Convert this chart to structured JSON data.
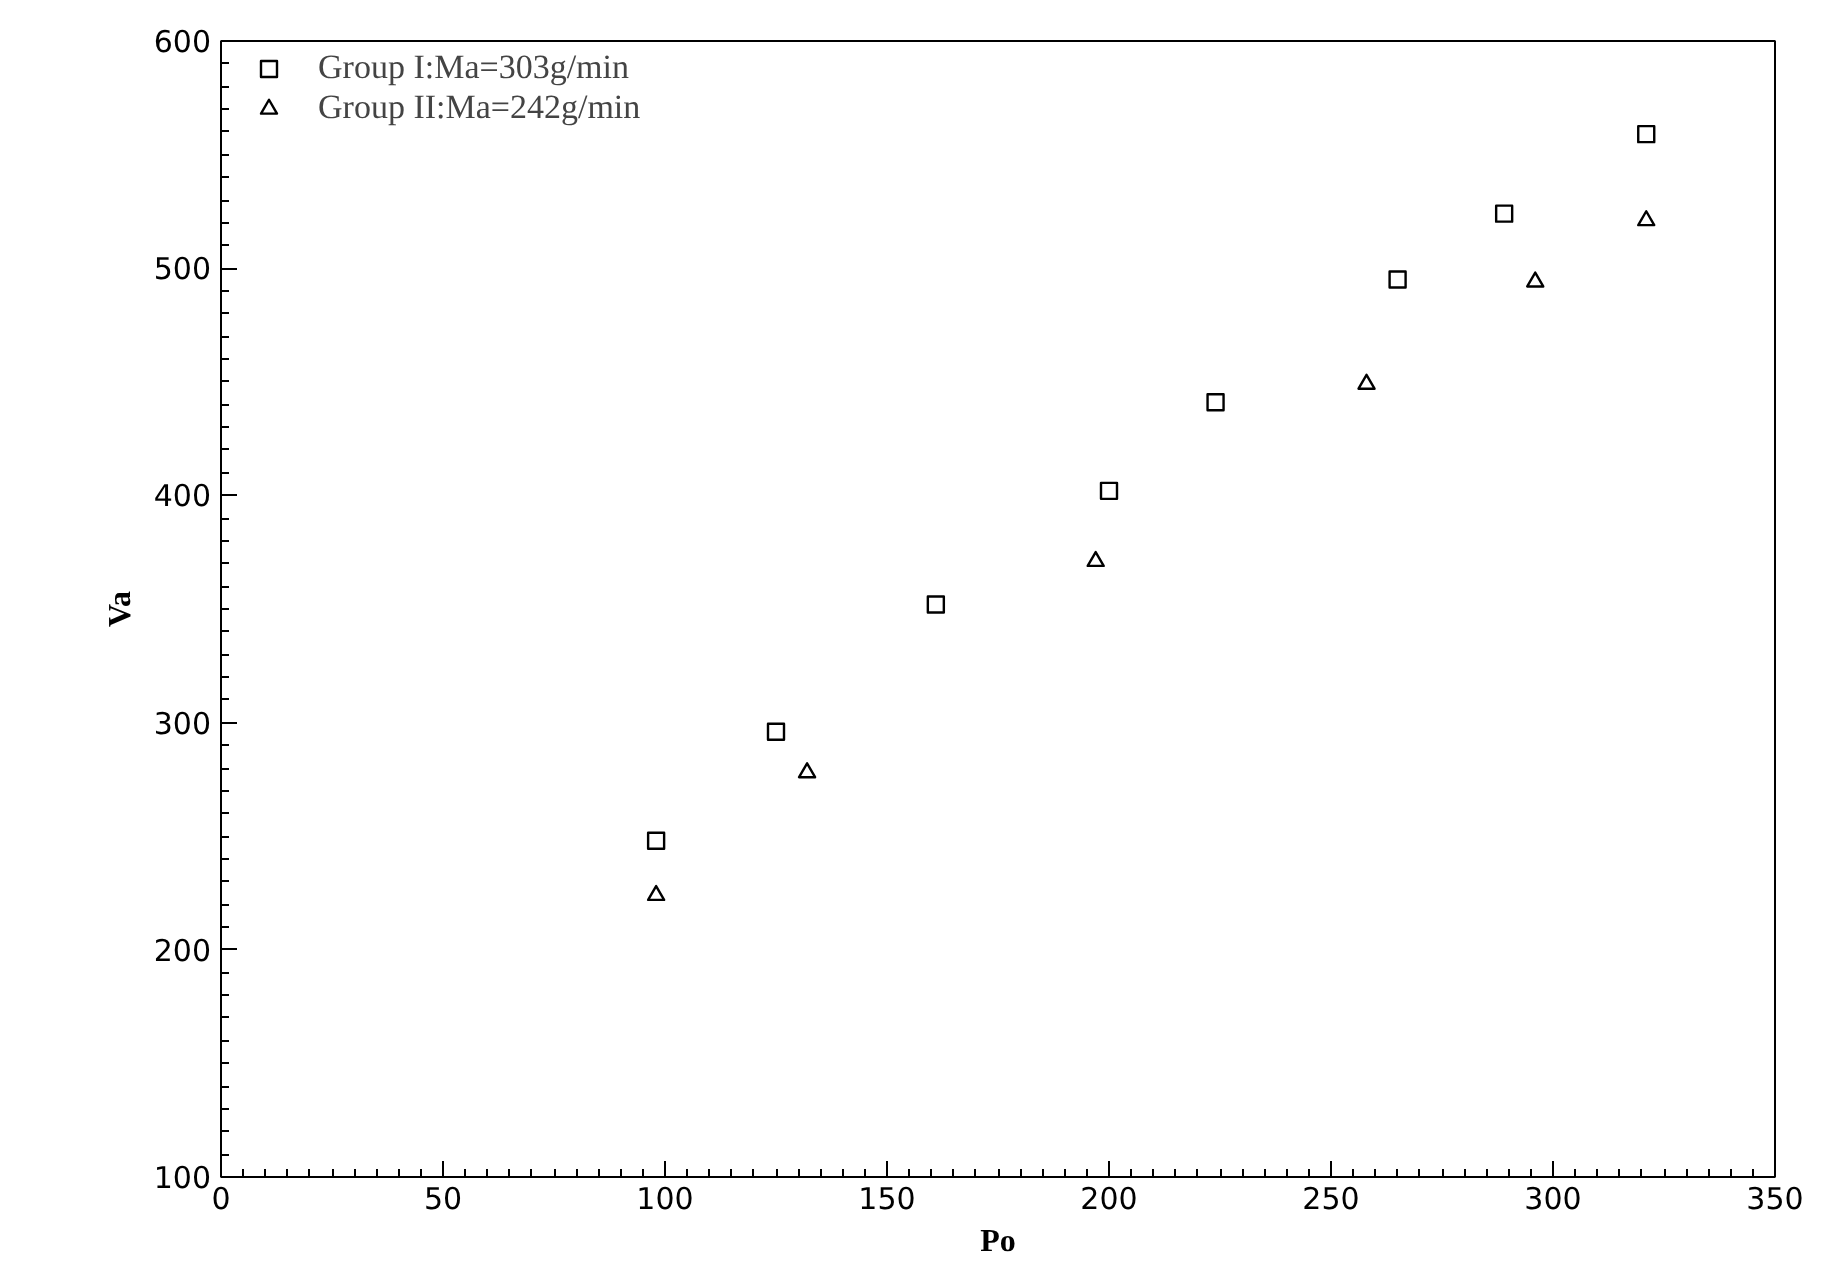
{
  "chart_data": {
    "type": "scatter",
    "xlabel": "Po",
    "ylabel": "Va",
    "xlim": [
      0,
      350
    ],
    "xticks": [
      0,
      50,
      100,
      150,
      200,
      250,
      300,
      350
    ],
    "ylim": [
      100,
      600
    ],
    "yticks": [
      100,
      200,
      300,
      400,
      500,
      600
    ],
    "grid": false,
    "legend": "top left",
    "series": [
      {
        "name": "Group I:Ma=303g/min",
        "color": "#000000",
        "marker": "square",
        "x": [
          98,
          125,
          161,
          200,
          224,
          265,
          289,
          321
        ],
        "values": [
          248,
          296,
          352,
          402,
          441,
          495,
          524,
          559
        ]
      },
      {
        "name": "Group II:Ma=242g/min",
        "color": "#000000",
        "marker": "triangle",
        "x": [
          98,
          132,
          197,
          258,
          296,
          321
        ],
        "values": [
          224,
          278,
          371,
          449,
          494,
          521
        ]
      }
    ]
  }
}
